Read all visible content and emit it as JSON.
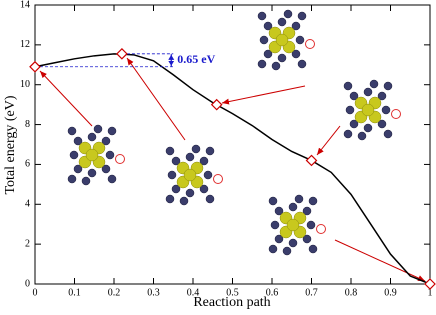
{
  "chart_data": {
    "type": "line",
    "xlabel": "Reaction path",
    "ylabel": "Total energy (eV)",
    "xlim": [
      0,
      1
    ],
    "xticks": [
      0,
      0.1,
      0.2,
      0.3,
      0.4,
      0.5,
      0.6,
      0.7,
      0.8,
      0.9,
      1
    ],
    "ylim": [
      0,
      14
    ],
    "yticks": [
      0,
      2,
      4,
      6,
      8,
      10,
      12,
      14
    ],
    "x": [
      0,
      0.22,
      0.46,
      0.7,
      1
    ],
    "values": [
      10.9,
      11.55,
      9.0,
      6.2,
      0
    ],
    "color": "#cc0000",
    "curve": {
      "color": "#000000",
      "x": [
        0,
        0.05,
        0.1,
        0.15,
        0.2,
        0.25,
        0.3,
        0.35,
        0.4,
        0.45,
        0.5,
        0.55,
        0.6,
        0.65,
        0.7,
        0.75,
        0.8,
        0.85,
        0.9,
        0.95,
        1
      ],
      "values": [
        10.9,
        11.1,
        11.3,
        11.45,
        11.55,
        11.5,
        11.2,
        10.5,
        9.75,
        9.1,
        8.55,
        7.95,
        7.25,
        6.65,
        6.2,
        5.6,
        4.5,
        3.0,
        1.5,
        0.4,
        0
      ]
    },
    "annotations": [
      "0.65 eV"
    ]
  }
}
